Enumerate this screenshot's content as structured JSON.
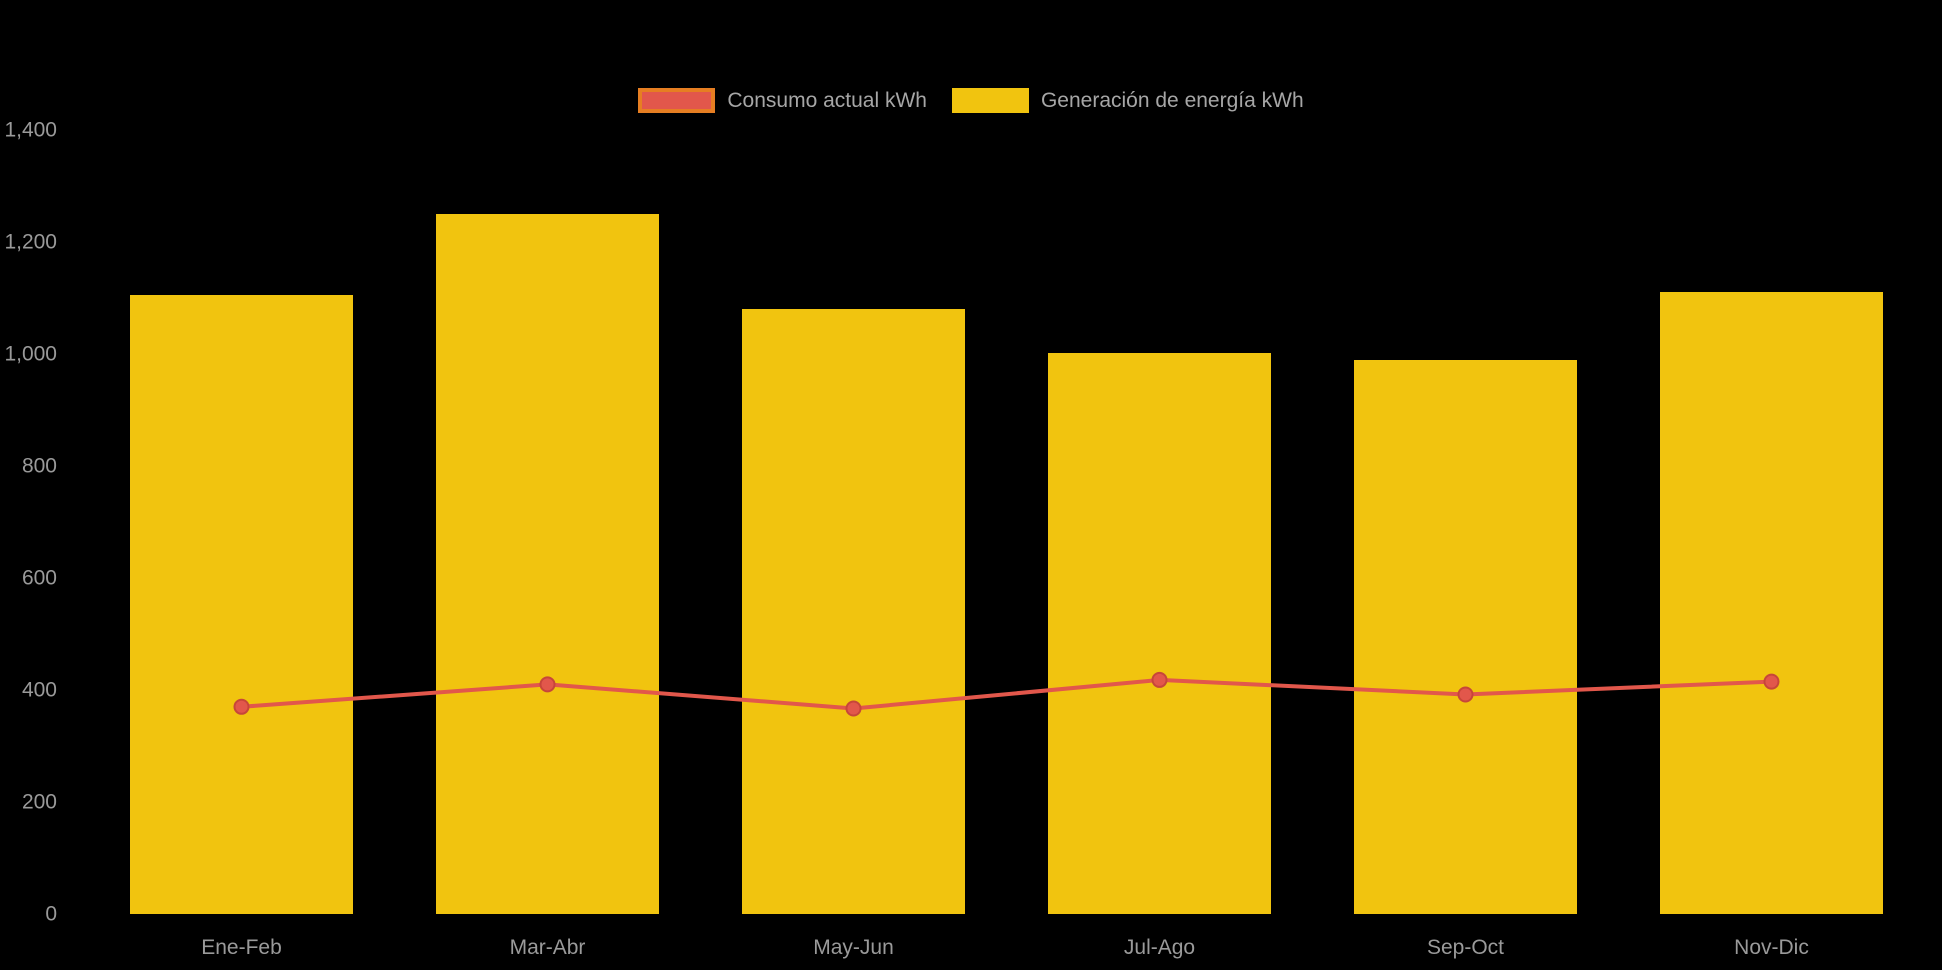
{
  "chart_data": {
    "type": "bar",
    "subtype": "bar-with-line-overlay",
    "categories": [
      "Ene-Feb",
      "Mar-Abr",
      "May-Jun",
      "Jul-Ago",
      "Sep-Oct",
      "Nov-Dic"
    ],
    "series": [
      {
        "name": "Consumo actual kWh",
        "type": "line",
        "values": [
          370,
          410,
          367,
          418,
          392,
          415
        ],
        "color": "#e2574b",
        "swatch_border": "#e67e22",
        "point_stroke": "#c7463a"
      },
      {
        "name": "Generación de energía kWh",
        "type": "bar",
        "values": [
          1105,
          1250,
          1080,
          1002,
          990,
          1110
        ],
        "color": "#f1c40f"
      }
    ],
    "title": "",
    "xlabel": "",
    "ylabel": "",
    "ylim": [
      0,
      1400
    ],
    "yticks": [
      0,
      200,
      400,
      600,
      800,
      1000,
      1200,
      1400
    ],
    "ytick_labels": [
      "0",
      "200",
      "400",
      "600",
      "800",
      "1,000",
      "1,200",
      "1,400"
    ],
    "legend_position": "top",
    "grid": false,
    "background": "#000000",
    "text_color": "#9a9a9a"
  }
}
